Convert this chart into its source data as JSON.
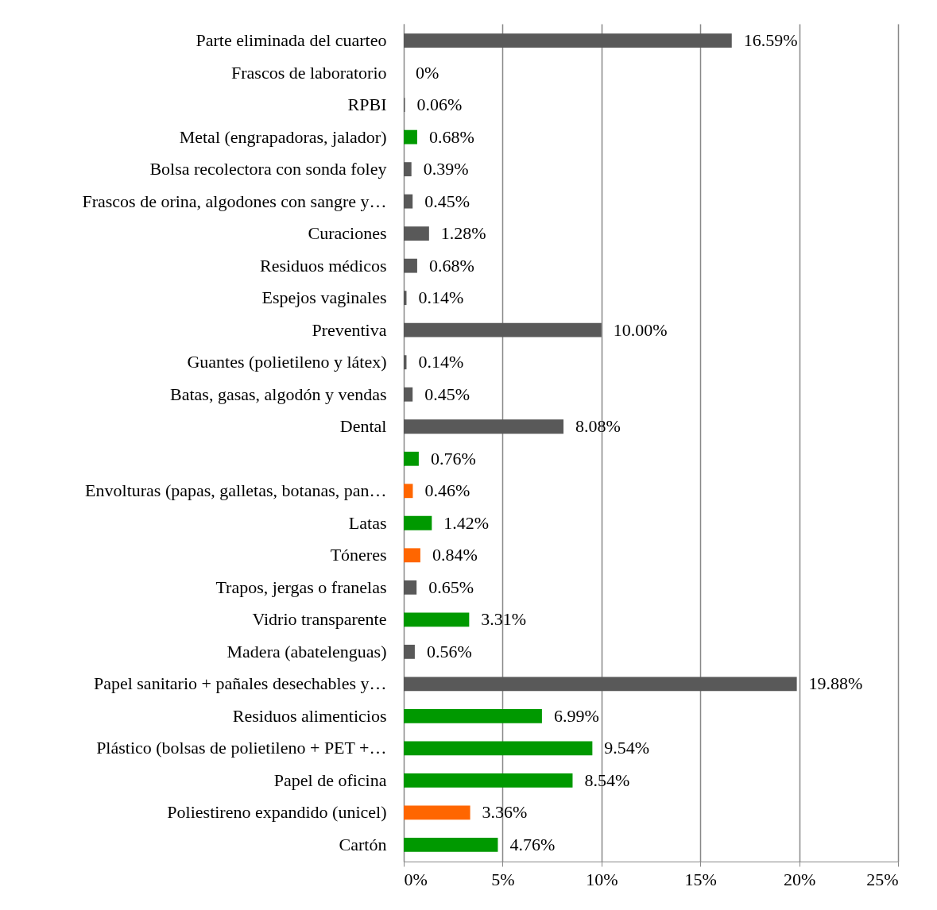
{
  "chart_data": {
    "type": "bar",
    "orientation": "horizontal",
    "categories": [
      "Parte eliminada del cuarteo",
      "Frascos de laboratorio",
      "RPBI",
      "Metal (engrapadoras, jalador)",
      "Bolsa recolectora con sonda foley",
      "Frascos de orina, algodones con sangre y…",
      "Curaciones",
      "Residuos médicos",
      "Espejos vaginales",
      "Preventiva",
      "Guantes (polietileno y látex)",
      "Batas, gasas, algodón y vendas",
      "Dental",
      null,
      "Envolturas (papas, galletas, botanas, pan…",
      "Latas",
      "Tóneres",
      "Trapos, jergas o franelas",
      "Vidrio transparente",
      "Madera (abatelenguas)",
      "Papel sanitario + pañales desechables y…",
      "Residuos alimenticios",
      "Plástico (bolsas de polietileno +  PET +…",
      "Papel de oficina",
      "Poliestireno expandido (unicel)",
      "Cartón"
    ],
    "values": [
      16.59,
      0,
      0.06,
      0.68,
      0.39,
      0.45,
      1.28,
      0.68,
      0.14,
      10.0,
      0.14,
      0.45,
      8.08,
      0.76,
      0.46,
      1.42,
      0.84,
      0.65,
      3.31,
      0.56,
      19.88,
      6.99,
      9.54,
      8.54,
      3.36,
      4.76
    ],
    "value_labels": [
      "16.59%",
      "0%",
      "0.06%",
      "0.68%",
      "0.39%",
      "0.45%",
      "1.28%",
      "0.68%",
      "0.14%",
      "10.00%",
      "0.14%",
      "0.45%",
      "8.08%",
      "0.76%",
      "0.46%",
      "1.42%",
      "0.84%",
      "0.65%",
      "3.31%",
      "0.56%",
      "19.88%",
      "6.99%",
      "9.54%",
      "8.54%",
      "3.36%",
      "4.76%"
    ],
    "colors": [
      "#595959",
      "#595959",
      "#595959",
      "#009900",
      "#595959",
      "#595959",
      "#595959",
      "#595959",
      "#595959",
      "#595959",
      "#595959",
      "#595959",
      "#595959",
      "#009900",
      "#ff6600",
      "#009900",
      "#ff6600",
      "#595959",
      "#009900",
      "#595959",
      "#595959",
      "#009900",
      "#009900",
      "#009900",
      "#ff6600",
      "#009900"
    ],
    "xlim": [
      0,
      25
    ],
    "xticks": [
      {
        "value": 0,
        "label": "0%"
      },
      {
        "value": 5,
        "label": "5%"
      },
      {
        "value": 10,
        "label": "10%"
      },
      {
        "value": 15,
        "label": "15%"
      },
      {
        "value": 20,
        "label": "20%"
      },
      {
        "value": 25,
        "label": "25%"
      }
    ],
    "grid": "x"
  }
}
